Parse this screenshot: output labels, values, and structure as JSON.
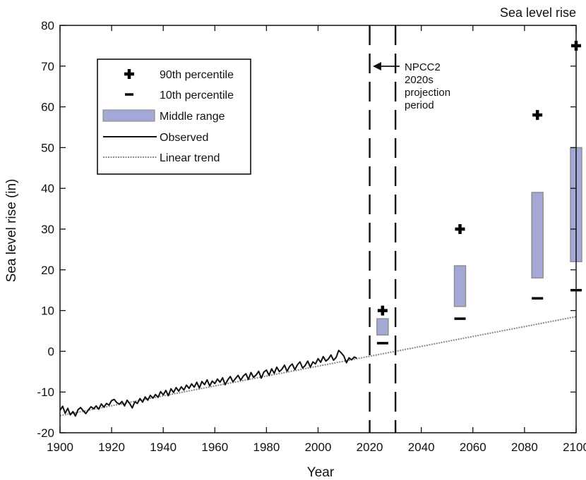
{
  "chart_data": {
    "type": "line",
    "title": "Sea level rise",
    "xlabel": "Year",
    "ylabel": "Sea level rise (in)",
    "xlim": [
      1900,
      2100
    ],
    "ylim": [
      -20,
      80
    ],
    "xticks": [
      1900,
      1920,
      1940,
      1960,
      1980,
      2000,
      2020,
      2040,
      2060,
      2080,
      2100
    ],
    "yticks": [
      -20,
      -10,
      0,
      10,
      20,
      30,
      40,
      50,
      60,
      70,
      80
    ],
    "grid": false,
    "legend_position": "upper-left",
    "legend": [
      {
        "key": "p90",
        "label": "90th percentile"
      },
      {
        "key": "p10",
        "label": "10th percentile"
      },
      {
        "key": "middle",
        "label": "Middle range"
      },
      {
        "key": "observed",
        "label": "Observed"
      },
      {
        "key": "trend",
        "label": "Linear trend"
      }
    ],
    "observed": {
      "name": "Observed",
      "x": [
        1900,
        1901,
        1902,
        1903,
        1904,
        1905,
        1906,
        1907,
        1908,
        1909,
        1910,
        1911,
        1912,
        1913,
        1914,
        1915,
        1916,
        1917,
        1918,
        1919,
        1920,
        1921,
        1922,
        1923,
        1924,
        1925,
        1926,
        1927,
        1928,
        1929,
        1930,
        1931,
        1932,
        1933,
        1934,
        1935,
        1936,
        1937,
        1938,
        1939,
        1940,
        1941,
        1942,
        1943,
        1944,
        1945,
        1946,
        1947,
        1948,
        1949,
        1950,
        1951,
        1952,
        1953,
        1954,
        1955,
        1956,
        1957,
        1958,
        1959,
        1960,
        1961,
        1962,
        1963,
        1964,
        1965,
        1966,
        1967,
        1968,
        1969,
        1970,
        1971,
        1972,
        1973,
        1974,
        1975,
        1976,
        1977,
        1978,
        1979,
        1980,
        1981,
        1982,
        1983,
        1984,
        1985,
        1986,
        1987,
        1988,
        1989,
        1990,
        1991,
        1992,
        1993,
        1994,
        1995,
        1996,
        1997,
        1998,
        1999,
        2000,
        2001,
        2002,
        2003,
        2004,
        2005,
        2006,
        2007,
        2008,
        2009,
        2010,
        2011,
        2012,
        2013,
        2014,
        2015
      ],
      "y": [
        -14.5,
        -13.5,
        -15.2,
        -14.0,
        -15.6,
        -14.8,
        -15.9,
        -14.3,
        -13.8,
        -14.6,
        -15.3,
        -14.4,
        -13.6,
        -14.1,
        -13.4,
        -14.2,
        -12.9,
        -13.7,
        -12.8,
        -13.2,
        -12.1,
        -11.8,
        -12.6,
        -13.0,
        -12.3,
        -13.4,
        -12.0,
        -12.8,
        -13.9,
        -12.4,
        -12.8,
        -11.6,
        -12.5,
        -11.2,
        -12.0,
        -10.8,
        -11.5,
        -10.6,
        -11.3,
        -9.9,
        -10.7,
        -9.6,
        -10.9,
        -9.2,
        -10.1,
        -8.9,
        -9.8,
        -8.7,
        -9.5,
        -8.3,
        -9.1,
        -8.0,
        -8.8,
        -7.6,
        -9.0,
        -7.4,
        -8.2,
        -7.0,
        -8.5,
        -7.3,
        -7.9,
        -6.8,
        -7.6,
        -6.5,
        -8.2,
        -7.0,
        -6.2,
        -7.5,
        -6.7,
        -5.9,
        -7.1,
        -6.1,
        -5.5,
        -6.9,
        -5.2,
        -6.4,
        -5.8,
        -4.9,
        -6.6,
        -5.1,
        -4.6,
        -5.9,
        -4.3,
        -5.4,
        -3.9,
        -5.0,
        -4.4,
        -3.4,
        -4.9,
        -3.7,
        -3.1,
        -4.5,
        -3.3,
        -2.6,
        -4.1,
        -3.5,
        -2.4,
        -3.9,
        -2.6,
        -3.1,
        -1.8,
        -2.7,
        -1.3,
        -2.4,
        -1.9,
        -0.9,
        -2.2,
        -1.5,
        0.2,
        -0.4,
        -1.2,
        -2.8,
        -1.6,
        -2.1,
        -1.4,
        -1.7
      ]
    },
    "linear_trend": {
      "name": "Linear trend",
      "x": [
        1900,
        2100
      ],
      "y": [
        -15.8,
        8.5
      ]
    },
    "projection_period": {
      "label": "NPCC2 2020s projection period",
      "x_start": 2020,
      "x_end": 2030
    },
    "projections": [
      {
        "x": 2025,
        "p90": 10,
        "p10": 2,
        "middle_low": 4,
        "middle_high": 8
      },
      {
        "x": 2055,
        "p90": 30,
        "p10": 8,
        "middle_low": 11,
        "middle_high": 21
      },
      {
        "x": 2085,
        "p90": 58,
        "p10": 13,
        "middle_low": 18,
        "middle_high": 39
      },
      {
        "x": 2100,
        "p90": 75,
        "p10": 15,
        "middle_low": 22,
        "middle_high": 50
      }
    ],
    "colors": {
      "observed": "#111111",
      "trend": "#888888",
      "middle_fill": "#a4a8d6",
      "middle_stroke": "#8f8f8f",
      "marker": "#000000"
    },
    "annotation_lines": [
      "NPCC2",
      "2020s",
      "projection",
      "period"
    ]
  }
}
